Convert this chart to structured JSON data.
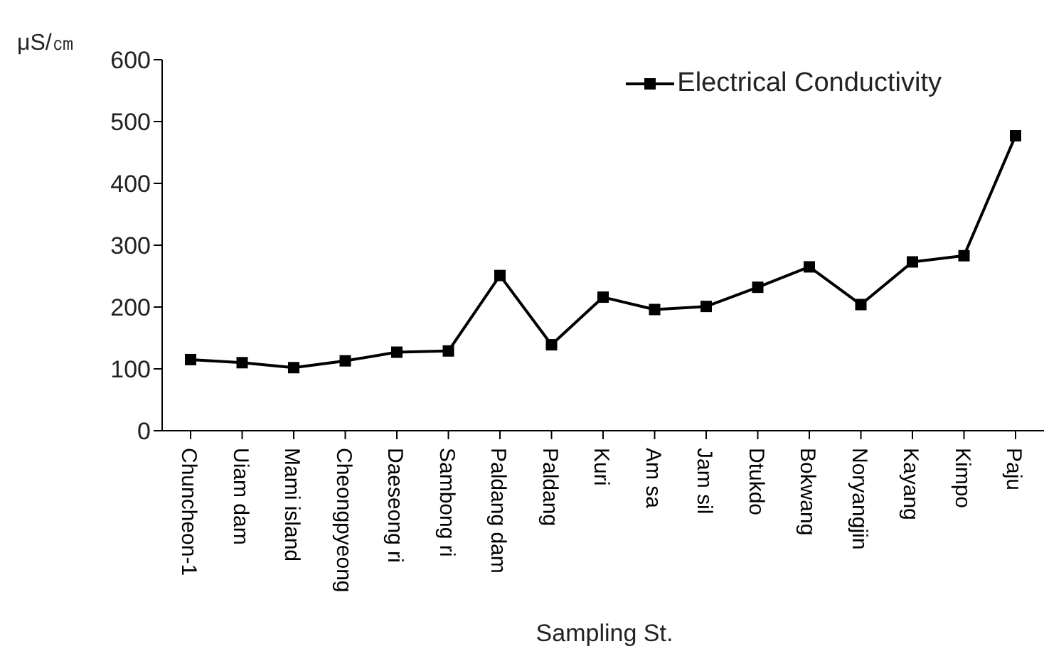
{
  "chart_data": {
    "type": "line",
    "xlabel": "Sampling St.",
    "ylabel": "μS/㎝",
    "categories": [
      "Chuncheon-1",
      "Uiam dam",
      "Mami island",
      "Cheongpyeong",
      "Daeseong ri",
      "Sambong ri",
      "Paldang dam",
      "Paldang",
      "Kuri",
      "Am sa",
      "Jam sil",
      "Dtukdo",
      "Bokwang",
      "Noryangjin",
      "Kayang",
      "Kimpo",
      "Paju"
    ],
    "series": [
      {
        "name": "Electrical Conductivity",
        "color": "#000000",
        "values": [
          115,
          110,
          102,
          113,
          127,
          129,
          251,
          139,
          216,
          196,
          201,
          232,
          265,
          204,
          273,
          283,
          477
        ]
      }
    ],
    "ylim": [
      0,
      600
    ],
    "yticks": [
      0,
      100,
      200,
      300,
      400,
      500,
      600
    ],
    "grid": false,
    "legend": "top right",
    "marker": "square",
    "line_style": "solid"
  }
}
